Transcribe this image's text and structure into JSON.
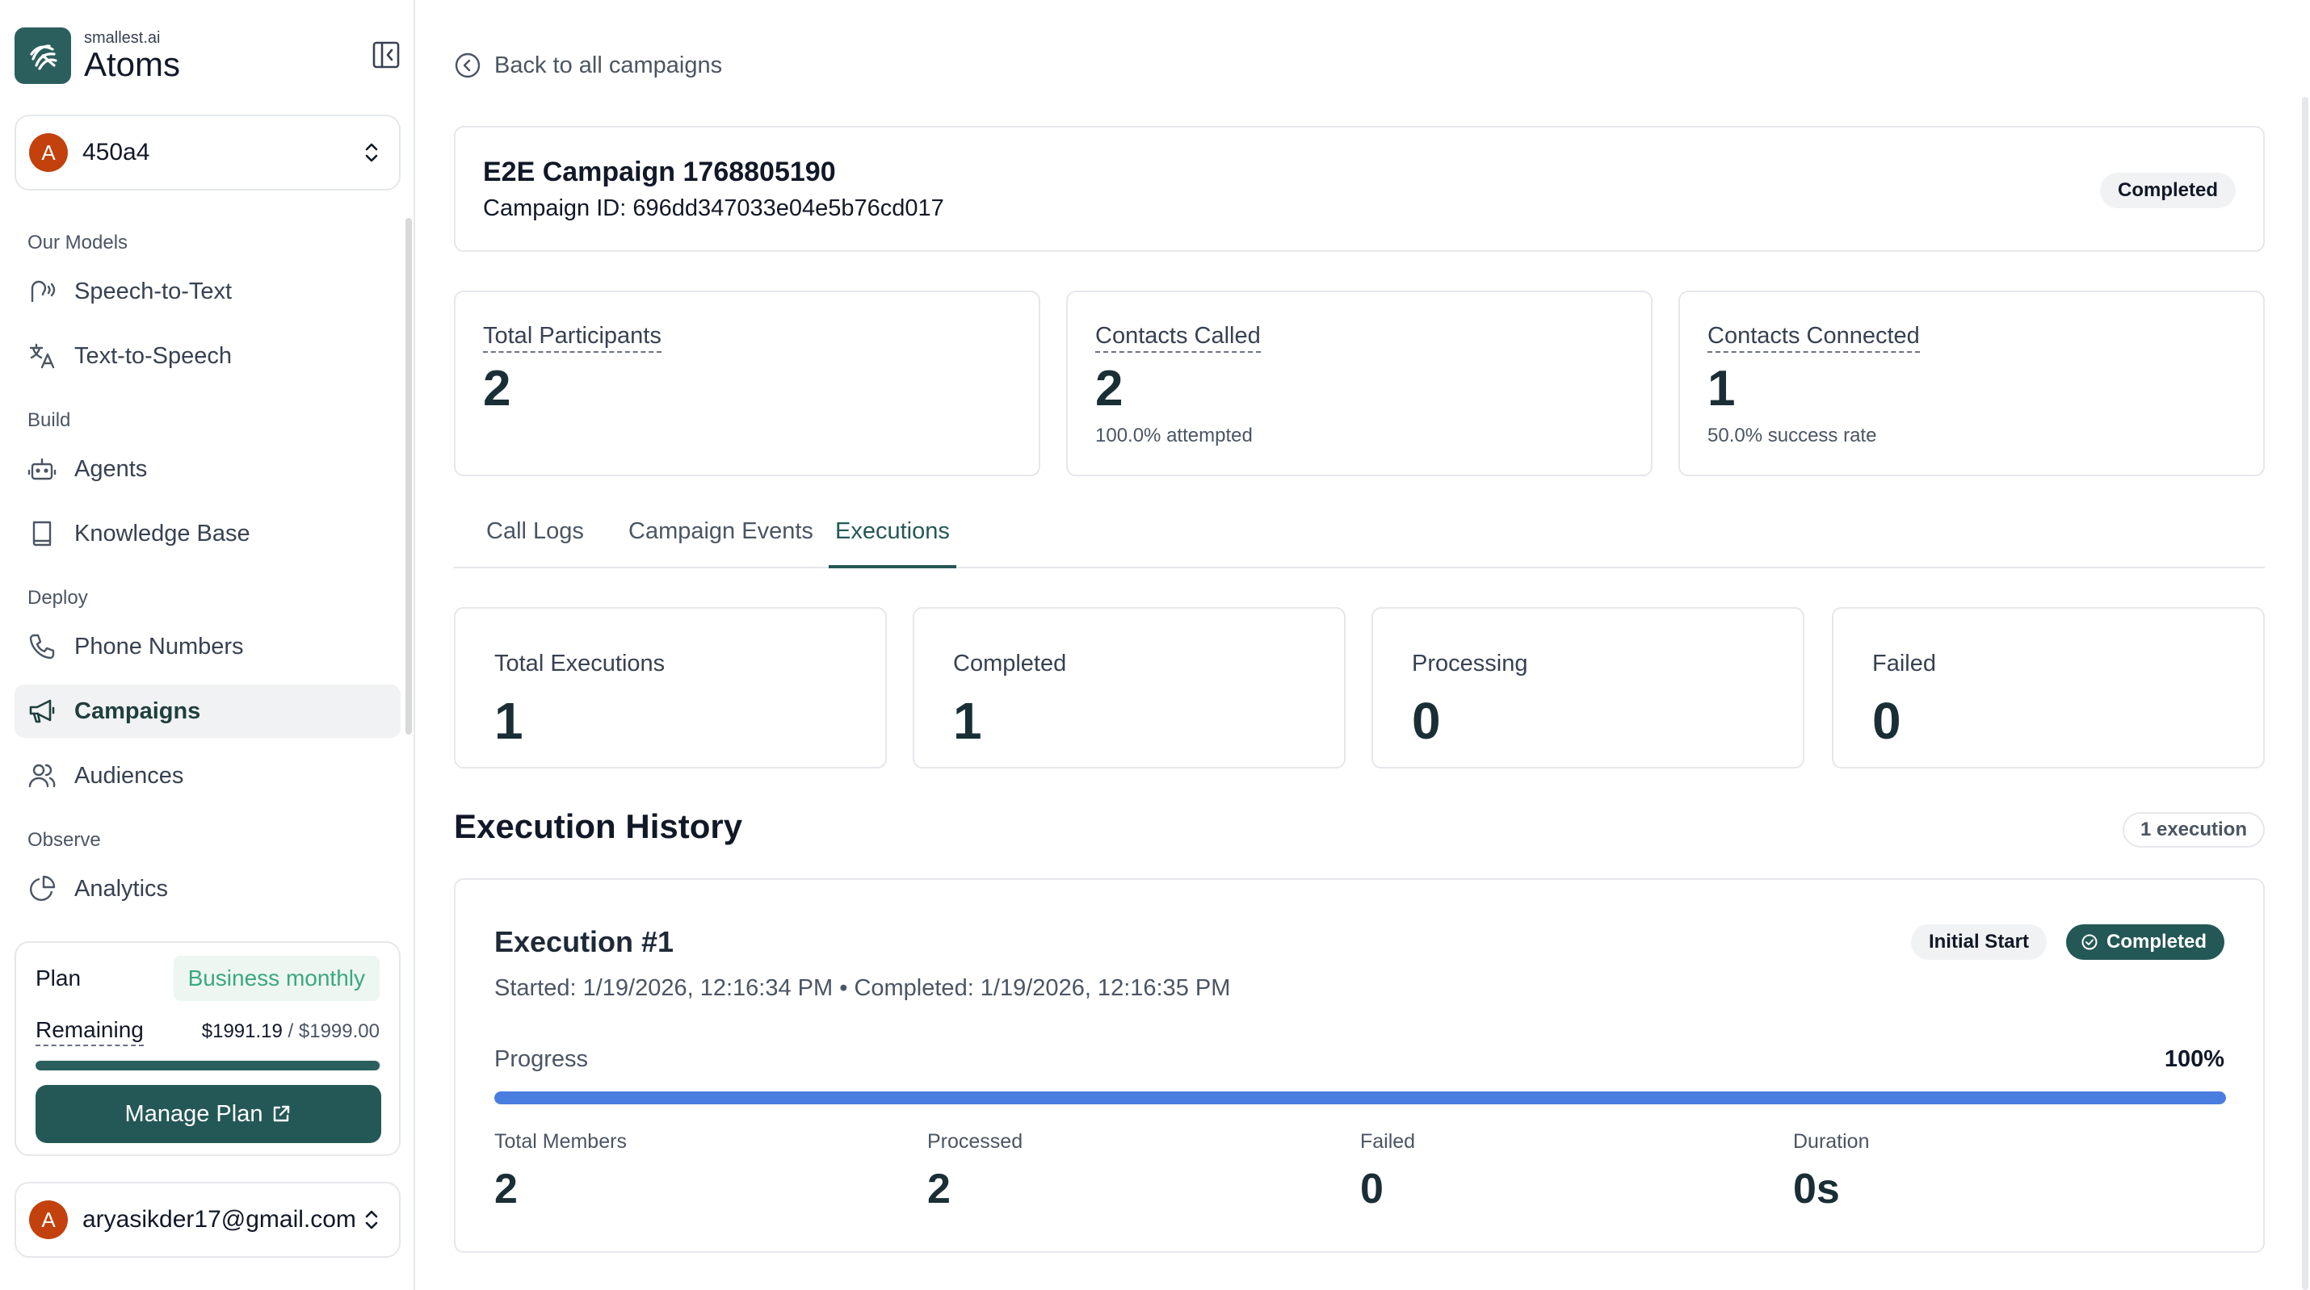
{
  "brand": {
    "small": "smallest.ai",
    "name": "Atoms"
  },
  "org": {
    "initial": "A",
    "name": "450a4"
  },
  "nav": {
    "sections": [
      {
        "title": "Our Models",
        "items": [
          {
            "label": "Speech-to-Text",
            "icon": "speech-icon"
          },
          {
            "label": "Text-to-Speech",
            "icon": "translate-icon"
          }
        ]
      },
      {
        "title": "Build",
        "items": [
          {
            "label": "Agents",
            "icon": "bot-icon"
          },
          {
            "label": "Knowledge Base",
            "icon": "book-icon"
          }
        ]
      },
      {
        "title": "Deploy",
        "items": [
          {
            "label": "Phone Numbers",
            "icon": "phone-icon"
          },
          {
            "label": "Campaigns",
            "icon": "megaphone-icon"
          },
          {
            "label": "Audiences",
            "icon": "users-icon"
          }
        ]
      },
      {
        "title": "Observe",
        "items": [
          {
            "label": "Analytics",
            "icon": "pie-chart-icon"
          }
        ]
      }
    ],
    "active": "Campaigns"
  },
  "plan": {
    "label": "Plan",
    "name": "Business monthly",
    "remaining_label": "Remaining",
    "remaining": "$1991.19",
    "separator": " / ",
    "total": "$1999.00",
    "remaining_fraction": 0.996,
    "manage_label": "Manage Plan"
  },
  "user": {
    "initial": "A",
    "email": "aryasikder17@gmail.com"
  },
  "back_label": "Back to all campaigns",
  "campaign": {
    "title": "E2E Campaign 1768805190",
    "id_line": "Campaign ID: 696dd347033e04e5b76cd017",
    "status": "Completed"
  },
  "stats": [
    {
      "label": "Total Participants",
      "value": "2",
      "sub": ""
    },
    {
      "label": "Contacts Called",
      "value": "2",
      "sub": "100.0% attempted"
    },
    {
      "label": "Contacts Connected",
      "value": "1",
      "sub": "50.0% success rate"
    }
  ],
  "tabs": [
    "Call Logs",
    "Campaign Events",
    "Executions"
  ],
  "active_tab": "Executions",
  "exec_stats": [
    {
      "label": "Total Executions",
      "value": "1"
    },
    {
      "label": "Completed",
      "value": "1"
    },
    {
      "label": "Processing",
      "value": "0"
    },
    {
      "label": "Failed",
      "value": "0"
    }
  ],
  "history": {
    "title": "Execution History",
    "count": "1 execution",
    "executions": [
      {
        "title": "Execution #1",
        "time": "Started: 1/19/2026, 12:16:34 PM • Completed: 1/19/2026, 12:16:35 PM",
        "trigger": "Initial Start",
        "status": "Completed",
        "progress_label": "Progress",
        "progress_text": "100%",
        "progress_value": 1.0,
        "metrics": [
          {
            "label": "Total Members",
            "value": "2"
          },
          {
            "label": "Processed",
            "value": "2"
          },
          {
            "label": "Failed",
            "value": "0"
          },
          {
            "label": "Duration",
            "value": "0s"
          }
        ]
      }
    ]
  },
  "colors": {
    "accent": "#245856",
    "progress": "#4a7de0",
    "plan_badge": "#3aa882",
    "avatar": "#c2410c"
  }
}
